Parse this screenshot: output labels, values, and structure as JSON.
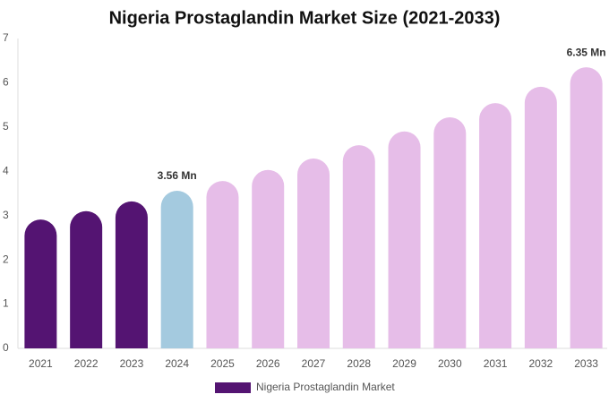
{
  "chart_data": {
    "type": "bar",
    "title": "Nigeria Prostaglandin Market Size (2021-2033)",
    "categories": [
      "2021",
      "2022",
      "2023",
      "2024",
      "2025",
      "2026",
      "2027",
      "2028",
      "2029",
      "2030",
      "2031",
      "2032",
      "2033"
    ],
    "series": [
      {
        "name": "Nigeria Prostaglandin Market",
        "color": "#541472",
        "colors": [
          "#541472",
          "#541472",
          "#541472",
          "#a4cadf",
          "#e6bde8",
          "#e6bde8",
          "#e6bde8",
          "#e6bde8",
          "#e6bde8",
          "#e6bde8",
          "#e6bde8",
          "#e6bde8",
          "#e6bde8"
        ],
        "values": [
          2.91,
          3.1,
          3.32,
          3.56,
          3.78,
          4.03,
          4.29,
          4.59,
          4.9,
          5.22,
          5.54,
          5.91,
          6.35
        ],
        "value_labels": [
          null,
          null,
          null,
          "3.56 Mn",
          null,
          null,
          null,
          null,
          null,
          null,
          null,
          null,
          "6.35 Mn"
        ]
      }
    ],
    "ylim": [
      0,
      7
    ],
    "yticks": [
      0,
      1,
      2,
      3,
      4,
      5,
      6,
      7
    ],
    "grid": false
  }
}
